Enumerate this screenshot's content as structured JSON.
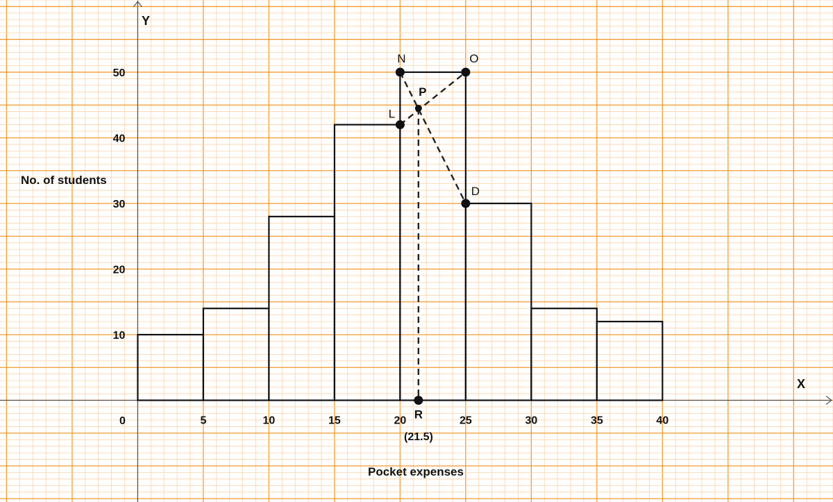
{
  "chart_data": {
    "type": "bar",
    "title": "",
    "xlabel": "Pocket expenses",
    "ylabel": "No. of students",
    "x_axis_letter": "X",
    "y_axis_letter": "Y",
    "origin_label": "0",
    "bins": [
      {
        "from": 0,
        "to": 5,
        "value": 10
      },
      {
        "from": 5,
        "to": 10,
        "value": 14
      },
      {
        "from": 10,
        "to": 15,
        "value": 28
      },
      {
        "from": 15,
        "to": 20,
        "value": 42
      },
      {
        "from": 20,
        "to": 25,
        "value": 50
      },
      {
        "from": 25,
        "to": 30,
        "value": 30
      },
      {
        "from": 30,
        "to": 35,
        "value": 14
      },
      {
        "from": 35,
        "to": 40,
        "value": 12
      }
    ],
    "x_ticks": [
      "5",
      "10",
      "15",
      "20",
      "25",
      "30",
      "35",
      "40"
    ],
    "y_ticks": [
      "10",
      "20",
      "30",
      "40",
      "50"
    ],
    "xlim": [
      -10.5,
      53
    ],
    "ylim": [
      -15.5,
      61
    ],
    "grid": true,
    "colors": {
      "grid_major": "#F29A2E",
      "grid_minor": "#FBD2A8",
      "bars": "#111111",
      "axes": "#555555"
    },
    "points": [
      {
        "name": "N",
        "x": 20,
        "y": 50
      },
      {
        "name": "O",
        "x": 25,
        "y": 50
      },
      {
        "name": "L",
        "x": 20,
        "y": 42
      },
      {
        "name": "D",
        "x": 25,
        "y": 30
      },
      {
        "name": "P",
        "x": 21.4,
        "y": 44.5
      },
      {
        "name": "R",
        "x": 21.4,
        "y": 0
      }
    ],
    "annotation": "(21.5)"
  }
}
